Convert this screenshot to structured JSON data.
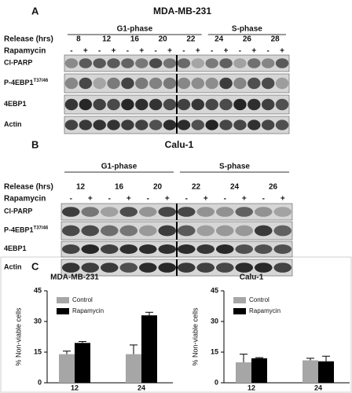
{
  "panel_a": {
    "label": "A",
    "title": "MDA-MB-231",
    "phases": [
      "G1-phase",
      "S-phase"
    ],
    "release_label": "Release (hrs)",
    "release": [
      8,
      12,
      16,
      20,
      22,
      24,
      26,
      28
    ],
    "rapamycin_label": "Rapamycin",
    "treatment": [
      "-",
      "+"
    ],
    "blots": [
      "Cl-PARP",
      "P-4EBP1",
      "4EBP1",
      "Actin"
    ],
    "phospho_site": "T37/46"
  },
  "panel_b": {
    "label": "B",
    "title": "Calu-1",
    "phases": [
      "G1-phase",
      "S-phase"
    ],
    "release_label": "Release (hrs)",
    "release": [
      12,
      16,
      20,
      22,
      24,
      26
    ],
    "rapamycin_label": "Rapamycin",
    "treatment": [
      "-",
      "+"
    ],
    "blots": [
      "Cl-PARP",
      "P-4EBP1",
      "4EBP1",
      "Actin"
    ],
    "phospho_site": "T37/46"
  },
  "panel_c_label": "C",
  "chart_data": [
    {
      "type": "bar",
      "title": "MDA-MB-231",
      "y_label": "% Non-viable cells",
      "categories": [
        12,
        24
      ],
      "series": [
        {
          "name": "Control",
          "color": "#a6a6a6",
          "values": [
            14,
            14
          ],
          "errors": [
            1.5,
            4.5
          ]
        },
        {
          "name": "Rapamycin",
          "color": "#000000",
          "values": [
            19.5,
            33
          ],
          "errors": [
            0.7,
            1.5
          ]
        }
      ],
      "ylim": [
        0,
        45
      ],
      "yticks": [
        0,
        15,
        30,
        45
      ]
    },
    {
      "type": "bar",
      "title": "Calu-1",
      "y_label": "% Non-viable cells",
      "categories": [
        12,
        24
      ],
      "series": [
        {
          "name": "Control",
          "color": "#a6a6a6",
          "values": [
            10,
            11
          ],
          "errors": [
            4,
            1
          ]
        },
        {
          "name": "Rapamycin",
          "color": "#000000",
          "values": [
            12,
            10.5
          ],
          "errors": [
            0.3,
            2.5
          ]
        }
      ],
      "ylim": [
        0,
        45
      ],
      "yticks": [
        0,
        15,
        30,
        45
      ]
    }
  ]
}
